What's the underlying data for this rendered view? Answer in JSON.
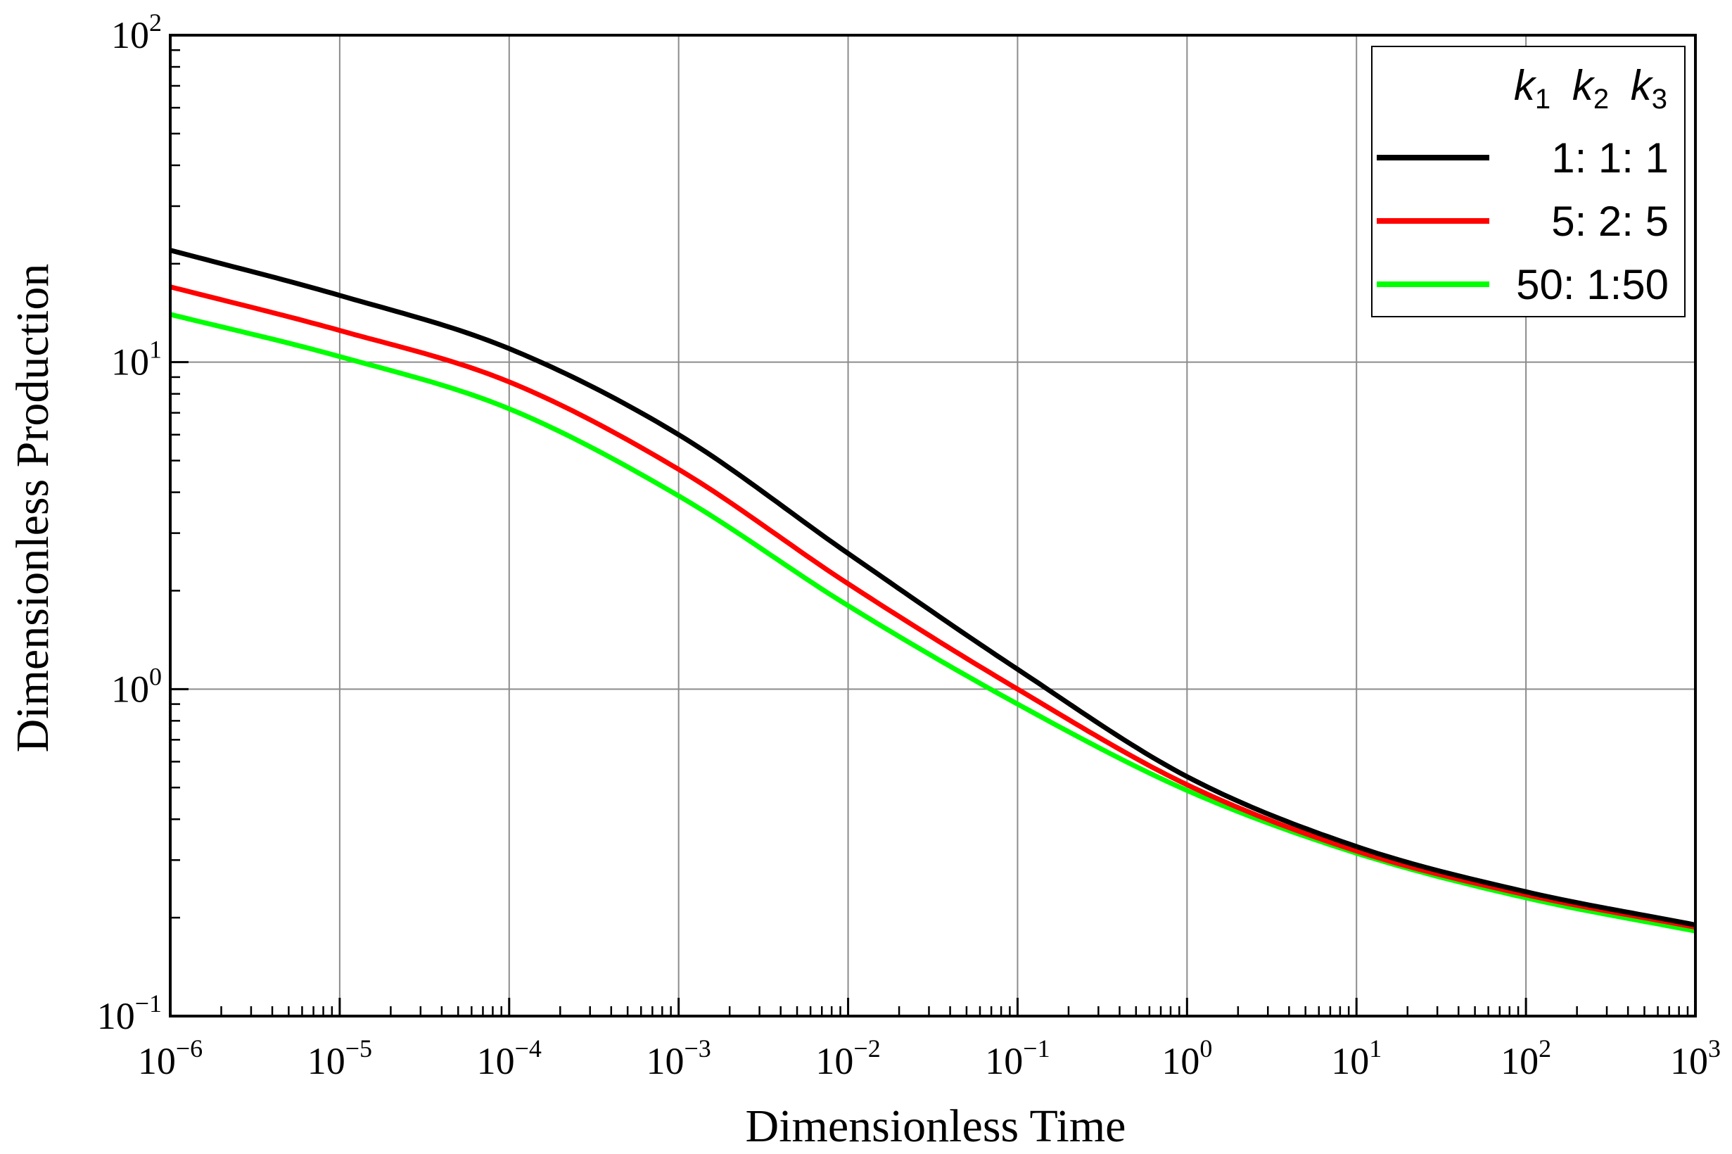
{
  "chart_data": {
    "type": "line",
    "xlabel": "Dimensionless Time",
    "ylabel": "Dimensionless Production",
    "xscale": "log",
    "yscale": "log",
    "xlim": [
      1e-06,
      1000
    ],
    "ylim": [
      0.1,
      100
    ],
    "grid": true,
    "legend_position": "top-right",
    "x_ticks": [
      {
        "base": "10",
        "exp": "−6"
      },
      {
        "base": "10",
        "exp": "−5"
      },
      {
        "base": "10",
        "exp": "−4"
      },
      {
        "base": "10",
        "exp": "−3"
      },
      {
        "base": "10",
        "exp": "−2"
      },
      {
        "base": "10",
        "exp": "−1"
      },
      {
        "base": "10",
        "exp": "0"
      },
      {
        "base": "10",
        "exp": "1"
      },
      {
        "base": "10",
        "exp": "2"
      },
      {
        "base": "10",
        "exp": "3"
      }
    ],
    "y_ticks": [
      {
        "base": "10",
        "exp": "−1"
      },
      {
        "base": "10",
        "exp": "0"
      },
      {
        "base": "10",
        "exp": "1"
      },
      {
        "base": "10",
        "exp": "2"
      }
    ],
    "legend_title": {
      "parts": [
        {
          "k": "k",
          "sub": "1"
        },
        {
          "k": "k",
          "sub": "2"
        },
        {
          "k": "k",
          "sub": "3"
        }
      ]
    },
    "x": [
      1e-06,
      1e-05,
      0.0001,
      0.001,
      0.01,
      0.1,
      1,
      10,
      100,
      1000
    ],
    "series": [
      {
        "name": "1: 1: 1",
        "color": "#000000",
        "values": [
          22,
          16,
          11,
          6.0,
          2.6,
          1.15,
          0.54,
          0.33,
          0.24,
          0.19
        ]
      },
      {
        "name": "5: 2: 5",
        "color": "#ff0000",
        "values": [
          17,
          12.5,
          8.7,
          4.7,
          2.1,
          1.0,
          0.51,
          0.32,
          0.235,
          0.187
        ]
      },
      {
        "name": "50: 1:50",
        "color": "#00ff00",
        "values": [
          14,
          10.4,
          7.2,
          3.9,
          1.8,
          0.9,
          0.49,
          0.315,
          0.23,
          0.182
        ]
      }
    ]
  }
}
